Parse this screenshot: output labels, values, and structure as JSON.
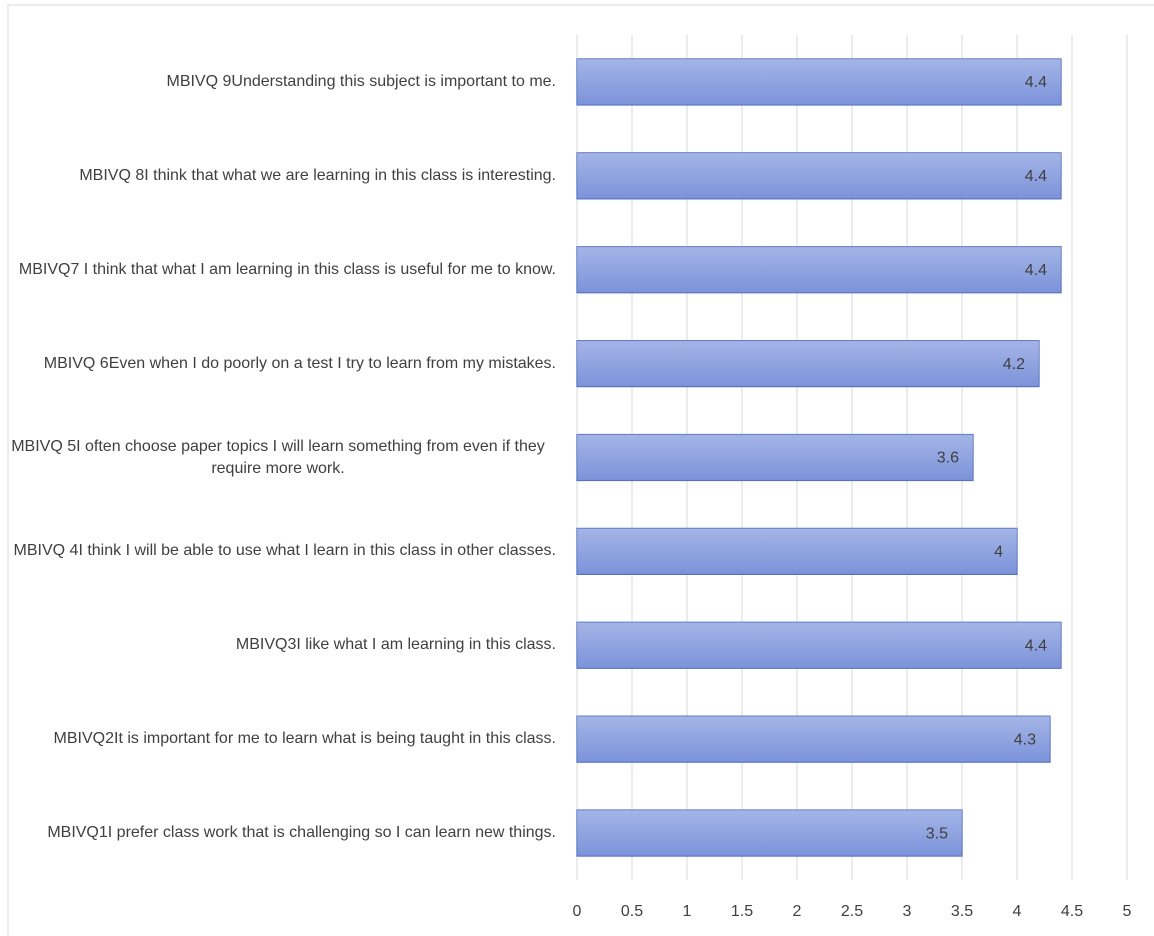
{
  "chart_data": {
    "type": "bar",
    "orientation": "horizontal",
    "categories": [
      "MBIVQ1I prefer class work that is challenging so I can learn new things.",
      "MBIVQ2It is important for me to learn what is being taught in this class.",
      "MBIVQ3I like what I am learning in this class.",
      "MBIVQ 4I think I will be able to use what I learn in this class in other classes.",
      "MBIVQ 5I often choose paper topics I will learn something from even if they require more work.",
      "MBIVQ 6Even when I do poorly on a test I try to learn from my mistakes.",
      "MBIVQ7 I think that what I am learning in this class is useful for me to know.",
      "MBIVQ 8I think that what we are learning in this class is interesting.",
      "MBIVQ 9Understanding this subject is important to me."
    ],
    "values": [
      3.5,
      4.3,
      4.4,
      4,
      3.6,
      4.2,
      4.4,
      4.4,
      4.4
    ],
    "color": "#8ea2e0",
    "xlim": [
      0,
      5
    ],
    "xticks": [
      0,
      0.5,
      1,
      1.5,
      2,
      2.5,
      3,
      3.5,
      4,
      4.5,
      5
    ],
    "grid": true
  }
}
